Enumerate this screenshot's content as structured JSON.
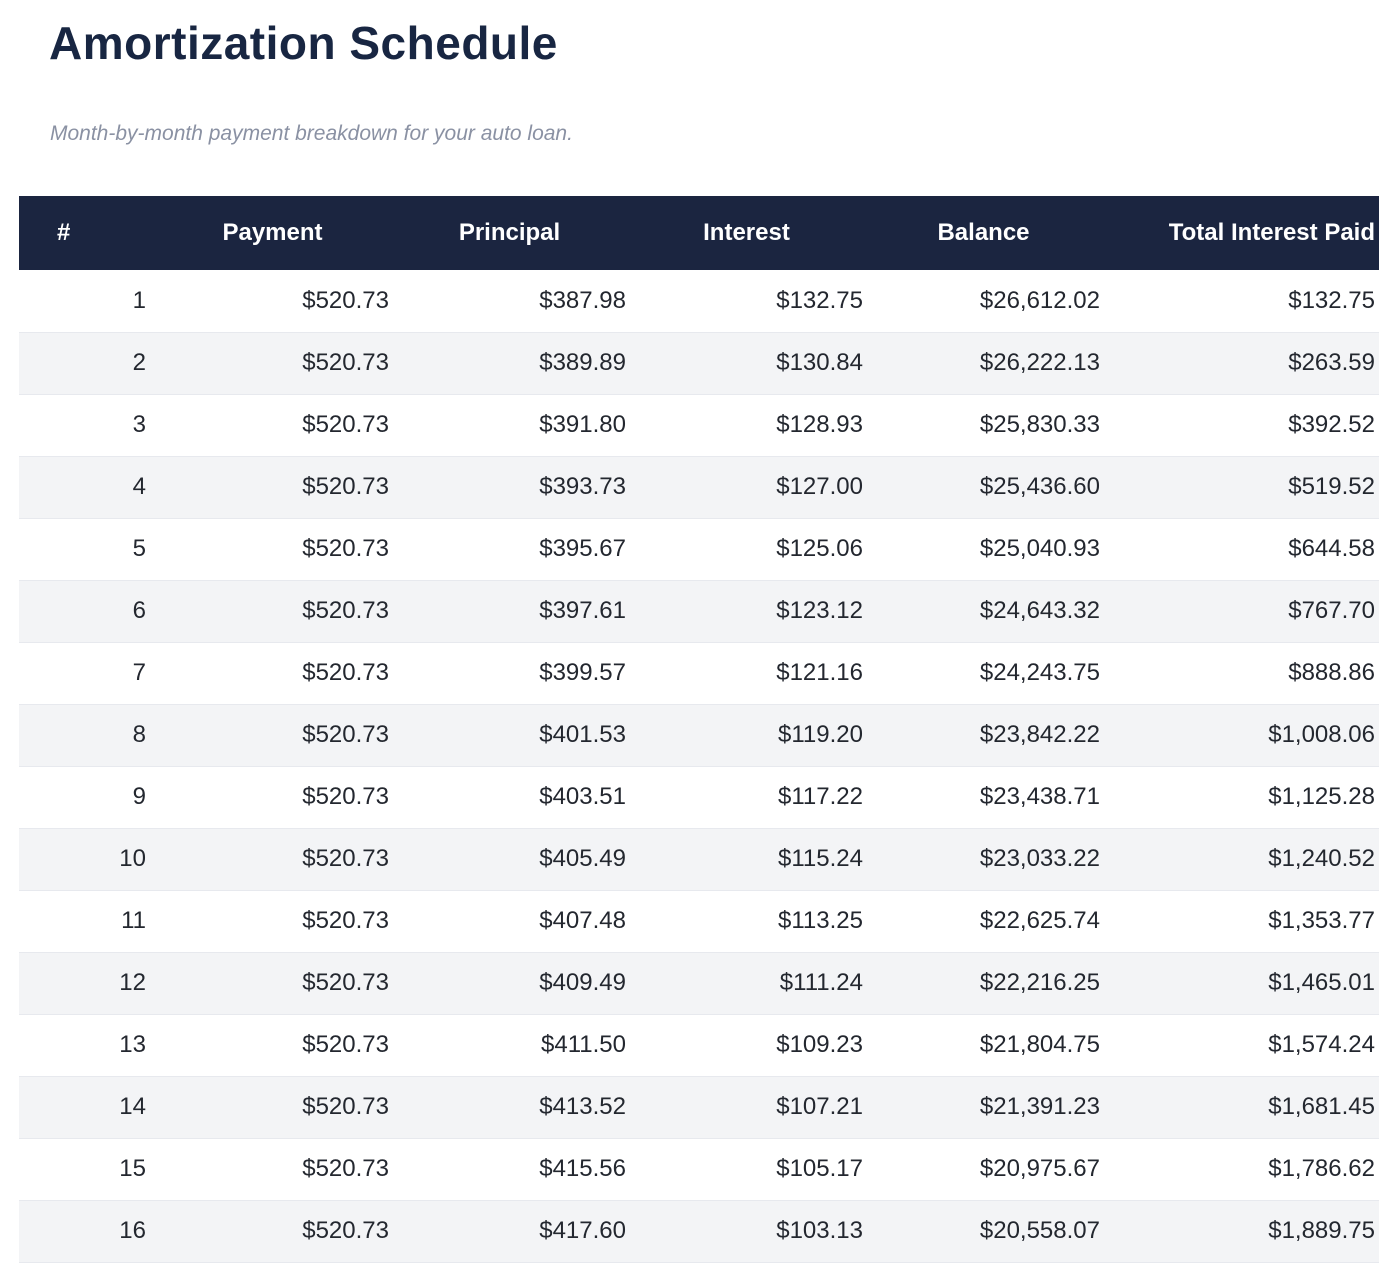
{
  "page": {
    "title": "Amortization Schedule",
    "subtitle": "Month-by-month payment breakdown for your auto loan."
  },
  "table": {
    "columns": [
      "#",
      "Payment",
      "Principal",
      "Interest",
      "Balance",
      "Total Interest Paid"
    ],
    "rows": [
      [
        "1",
        "$520.73",
        "$387.98",
        "$132.75",
        "$26,612.02",
        "$132.75"
      ],
      [
        "2",
        "$520.73",
        "$389.89",
        "$130.84",
        "$26,222.13",
        "$263.59"
      ],
      [
        "3",
        "$520.73",
        "$391.80",
        "$128.93",
        "$25,830.33",
        "$392.52"
      ],
      [
        "4",
        "$520.73",
        "$393.73",
        "$127.00",
        "$25,436.60",
        "$519.52"
      ],
      [
        "5",
        "$520.73",
        "$395.67",
        "$125.06",
        "$25,040.93",
        "$644.58"
      ],
      [
        "6",
        "$520.73",
        "$397.61",
        "$123.12",
        "$24,643.32",
        "$767.70"
      ],
      [
        "7",
        "$520.73",
        "$399.57",
        "$121.16",
        "$24,243.75",
        "$888.86"
      ],
      [
        "8",
        "$520.73",
        "$401.53",
        "$119.20",
        "$23,842.22",
        "$1,008.06"
      ],
      [
        "9",
        "$520.73",
        "$403.51",
        "$117.22",
        "$23,438.71",
        "$1,125.28"
      ],
      [
        "10",
        "$520.73",
        "$405.49",
        "$115.24",
        "$23,033.22",
        "$1,240.52"
      ],
      [
        "11",
        "$520.73",
        "$407.48",
        "$113.25",
        "$22,625.74",
        "$1,353.77"
      ],
      [
        "12",
        "$520.73",
        "$409.49",
        "$111.24",
        "$22,216.25",
        "$1,465.01"
      ],
      [
        "13",
        "$520.73",
        "$411.50",
        "$109.23",
        "$21,804.75",
        "$1,574.24"
      ],
      [
        "14",
        "$520.73",
        "$413.52",
        "$107.21",
        "$21,391.23",
        "$1,681.45"
      ],
      [
        "15",
        "$520.73",
        "$415.56",
        "$105.17",
        "$20,975.67",
        "$1,786.62"
      ],
      [
        "16",
        "$520.73",
        "$417.60",
        "$103.13",
        "$20,558.07",
        "$1,889.75"
      ]
    ]
  },
  "colors": {
    "header_bg": "#1b2540",
    "header_text": "#ffffff",
    "title_text": "#182642",
    "subtitle_text": "#8a91a3",
    "row_alt_bg": "#f3f4f6",
    "row_border": "#e7e9ee",
    "cell_text": "#23272f",
    "page_bg": "#ffffff"
  }
}
